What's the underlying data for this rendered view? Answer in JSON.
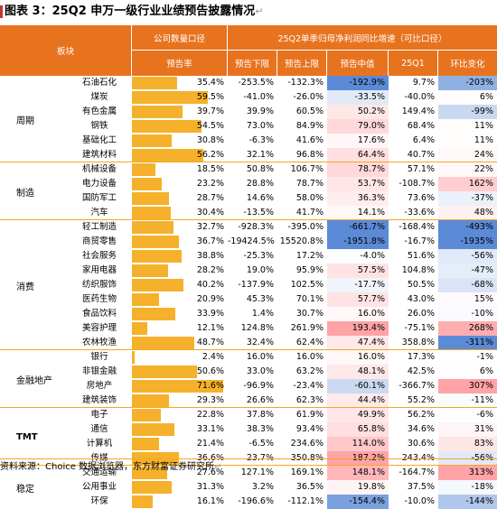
{
  "title": "图表 3：25Q2 申万一级行业业绩预告披露情况",
  "title_mark": "↵",
  "header": {
    "sector": "板块",
    "group1": "公司数量口径",
    "group2": "25Q2单季归母净利润同比增速（可比口径）",
    "rate": "预告率",
    "lower": "预告下限",
    "upper": "预告上限",
    "mid": "预告中值",
    "q1": "25Q1",
    "qoq": "环比变化"
  },
  "groups": [
    {
      "name": "周期",
      "rows": [
        {
          "ind": "石油石化",
          "rate": "35.4%",
          "r": 35.4,
          "lo": "-253.5%",
          "up": "-132.3%",
          "mid": "-192.9%",
          "q1": "9.7%",
          "qoq": "-203%"
        },
        {
          "ind": "煤炭",
          "rate": "59.5%",
          "r": 59.5,
          "lo": "-41.0%",
          "up": "-26.0%",
          "mid": "-33.5%",
          "q1": "-40.0%",
          "qoq": "6%"
        },
        {
          "ind": "有色金属",
          "rate": "39.7%",
          "r": 39.7,
          "lo": "39.9%",
          "up": "60.5%",
          "mid": "50.2%",
          "q1": "149.4%",
          "qoq": "-99%"
        },
        {
          "ind": "钢铁",
          "rate": "54.5%",
          "r": 54.5,
          "lo": "73.0%",
          "up": "84.9%",
          "mid": "79.0%",
          "q1": "68.4%",
          "qoq": "11%"
        },
        {
          "ind": "基础化工",
          "rate": "30.8%",
          "r": 30.8,
          "lo": "-6.3%",
          "up": "41.6%",
          "mid": "17.6%",
          "q1": "6.4%",
          "qoq": "11%"
        },
        {
          "ind": "建筑材料",
          "rate": "56.2%",
          "r": 56.2,
          "lo": "32.1%",
          "up": "96.8%",
          "mid": "64.4%",
          "q1": "40.7%",
          "qoq": "24%"
        }
      ]
    },
    {
      "name": "制造",
      "rows": [
        {
          "ind": "机械设备",
          "rate": "18.5%",
          "r": 18.5,
          "lo": "50.8%",
          "up": "106.7%",
          "mid": "78.7%",
          "q1": "57.1%",
          "qoq": "22%"
        },
        {
          "ind": "电力设备",
          "rate": "23.2%",
          "r": 23.2,
          "lo": "28.8%",
          "up": "78.7%",
          "mid": "53.7%",
          "q1": "-108.7%",
          "qoq": "162%"
        },
        {
          "ind": "国防军工",
          "rate": "28.7%",
          "r": 28.7,
          "lo": "14.6%",
          "up": "58.0%",
          "mid": "36.3%",
          "q1": "73.6%",
          "qoq": "-37%"
        },
        {
          "ind": "汽车",
          "rate": "30.4%",
          "r": 30.4,
          "lo": "-13.5%",
          "up": "41.7%",
          "mid": "14.1%",
          "q1": "-33.6%",
          "qoq": "48%"
        }
      ]
    },
    {
      "name": "消费",
      "rows": [
        {
          "ind": "轻工制造",
          "rate": "32.7%",
          "r": 32.7,
          "lo": "-928.3%",
          "up": "-395.0%",
          "mid": "-661.7%",
          "q1": "-168.4%",
          "qoq": "-493%"
        },
        {
          "ind": "商贸零售",
          "rate": "36.7%",
          "r": 36.7,
          "lo": "-19424.5%",
          "up": "15520.8%",
          "mid": "-1951.8%",
          "q1": "-16.7%",
          "qoq": "-1935%"
        },
        {
          "ind": "社会服务",
          "rate": "38.8%",
          "r": 38.8,
          "lo": "-25.3%",
          "up": "17.2%",
          "mid": "-4.0%",
          "q1": "51.6%",
          "qoq": "-56%"
        },
        {
          "ind": "家用电器",
          "rate": "28.2%",
          "r": 28.2,
          "lo": "19.0%",
          "up": "95.9%",
          "mid": "57.5%",
          "q1": "104.8%",
          "qoq": "-47%"
        },
        {
          "ind": "纺织服饰",
          "rate": "40.2%",
          "r": 40.2,
          "lo": "-137.9%",
          "up": "102.5%",
          "mid": "-17.7%",
          "q1": "50.5%",
          "qoq": "-68%"
        },
        {
          "ind": "医药生物",
          "rate": "20.9%",
          "r": 20.9,
          "lo": "45.3%",
          "up": "70.1%",
          "mid": "57.7%",
          "q1": "43.0%",
          "qoq": "15%"
        },
        {
          "ind": "食品饮料",
          "rate": "33.9%",
          "r": 33.9,
          "lo": "1.4%",
          "up": "30.7%",
          "mid": "16.0%",
          "q1": "26.0%",
          "qoq": "-10%"
        },
        {
          "ind": "美容护理",
          "rate": "12.1%",
          "r": 12.1,
          "lo": "124.8%",
          "up": "261.9%",
          "mid": "193.4%",
          "q1": "-75.1%",
          "qoq": "268%"
        },
        {
          "ind": "农林牧渔",
          "rate": "48.7%",
          "r": 48.7,
          "lo": "32.4%",
          "up": "62.4%",
          "mid": "47.4%",
          "q1": "358.8%",
          "qoq": "-311%"
        }
      ]
    },
    {
      "name": "金融地产",
      "rows": [
        {
          "ind": "银行",
          "rate": "2.4%",
          "r": 2.4,
          "lo": "16.0%",
          "up": "16.0%",
          "mid": "16.0%",
          "q1": "17.3%",
          "qoq": "-1%"
        },
        {
          "ind": "非银金融",
          "rate": "50.6%",
          "r": 50.6,
          "lo": "33.0%",
          "up": "63.2%",
          "mid": "48.1%",
          "q1": "42.5%",
          "qoq": "6%"
        },
        {
          "ind": "房地产",
          "rate": "71.6%",
          "r": 71.6,
          "lo": "-96.9%",
          "up": "-23.4%",
          "mid": "-60.1%",
          "q1": "-366.7%",
          "qoq": "307%"
        },
        {
          "ind": "建筑装饰",
          "rate": "29.3%",
          "r": 29.3,
          "lo": "26.6%",
          "up": "62.3%",
          "mid": "44.4%",
          "q1": "55.2%",
          "qoq": "-11%"
        }
      ]
    },
    {
      "name": "TMT",
      "rows": [
        {
          "ind": "电子",
          "rate": "22.8%",
          "r": 22.8,
          "lo": "37.8%",
          "up": "61.9%",
          "mid": "49.9%",
          "q1": "56.2%",
          "qoq": "-6%"
        },
        {
          "ind": "通信",
          "rate": "33.1%",
          "r": 33.1,
          "lo": "38.3%",
          "up": "93.4%",
          "mid": "65.8%",
          "q1": "34.6%",
          "qoq": "31%"
        },
        {
          "ind": "计算机",
          "rate": "21.4%",
          "r": 21.4,
          "lo": "-6.5%",
          "up": "234.6%",
          "mid": "114.0%",
          "q1": "30.6%",
          "qoq": "83%"
        },
        {
          "ind": "传媒",
          "rate": "36.6%",
          "r": 36.6,
          "lo": "23.7%",
          "up": "350.8%",
          "mid": "187.2%",
          "q1": "243.4%",
          "qoq": "-56%"
        }
      ]
    },
    {
      "name": "稳定",
      "rows": [
        {
          "ind": "交通运输",
          "rate": "27.6%",
          "r": 27.6,
          "lo": "127.1%",
          "up": "169.1%",
          "mid": "148.1%",
          "q1": "-164.7%",
          "qoq": "313%"
        },
        {
          "ind": "公用事业",
          "rate": "31.3%",
          "r": 31.3,
          "lo": "3.2%",
          "up": "36.5%",
          "mid": "19.8%",
          "q1": "37.5%",
          "qoq": "-18%"
        },
        {
          "ind": "环保",
          "rate": "16.1%",
          "r": 16.1,
          "lo": "-196.6%",
          "up": "-112.1%",
          "mid": "-154.4%",
          "q1": "-10.0%",
          "qoq": "-144%"
        }
      ]
    }
  ],
  "source": "资料来源：Choice 数据浏览器，东方财富证券研究所",
  "source_mark": "↵",
  "colors": {
    "header": "#e8731f",
    "bar": "#f5b12b",
    "pos": "#f4a3a6",
    "neg": "#5b8ad6",
    "rule": "#f5a623"
  }
}
